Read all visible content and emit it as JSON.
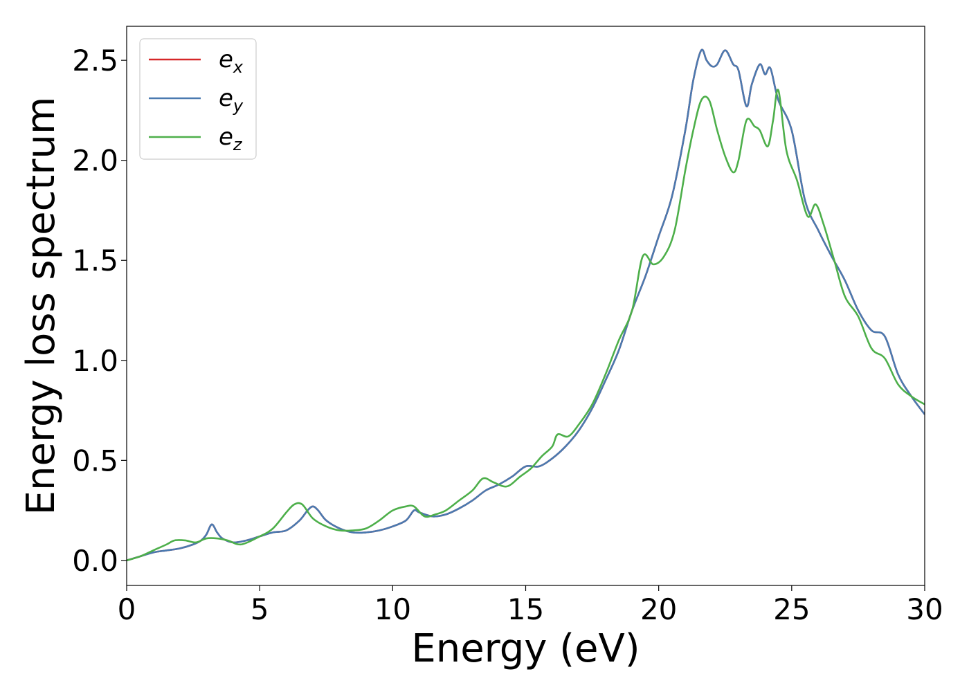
{
  "chart_data": {
    "type": "line",
    "title": "",
    "xlabel": "Energy (eV)",
    "ylabel": "Energy loss spectrum",
    "xlim": [
      0,
      30
    ],
    "ylim": [
      -0.125,
      2.67
    ],
    "xticks": [
      0,
      5,
      10,
      15,
      20,
      25,
      30
    ],
    "xtick_labels": [
      "0",
      "5",
      "10",
      "15",
      "20",
      "25",
      "30"
    ],
    "yticks": [
      0.0,
      0.5,
      1.0,
      1.5,
      2.0,
      2.5
    ],
    "ytick_labels": [
      "0.0",
      "0.5",
      "1.0",
      "1.5",
      "2.0",
      "2.5"
    ],
    "grid": false,
    "legend_position": "top-left",
    "series": [
      {
        "name": "e",
        "subscript": "x",
        "color": "#d62728",
        "x": [
          0,
          0.5,
          1,
          1.5,
          2,
          2.5,
          2.8,
          3.0,
          3.2,
          3.4,
          3.6,
          4.0,
          4.5,
          5,
          5.5,
          6,
          6.5,
          6.8,
          7.0,
          7.2,
          7.5,
          8,
          8.5,
          9,
          9.5,
          10,
          10.5,
          10.8,
          11,
          11.5,
          12,
          12.5,
          13,
          13.5,
          14,
          14.5,
          15,
          15.5,
          16,
          16.5,
          17,
          17.5,
          18,
          18.5,
          19,
          19.5,
          20,
          20.5,
          21,
          21.3,
          21.6,
          21.8,
          22.0,
          22.2,
          22.5,
          22.8,
          23.0,
          23.3,
          23.5,
          23.8,
          24.0,
          24.2,
          24.5,
          25,
          25.5,
          26,
          26.5,
          27,
          27.5,
          28,
          28.5,
          29,
          29.5,
          30
        ],
        "y": [
          0,
          0.02,
          0.04,
          0.05,
          0.06,
          0.08,
          0.1,
          0.13,
          0.18,
          0.14,
          0.11,
          0.09,
          0.1,
          0.12,
          0.14,
          0.15,
          0.2,
          0.25,
          0.27,
          0.25,
          0.2,
          0.16,
          0.14,
          0.14,
          0.15,
          0.17,
          0.2,
          0.25,
          0.24,
          0.22,
          0.23,
          0.26,
          0.3,
          0.35,
          0.38,
          0.42,
          0.47,
          0.47,
          0.51,
          0.57,
          0.65,
          0.76,
          0.9,
          1.05,
          1.25,
          1.42,
          1.62,
          1.82,
          2.15,
          2.4,
          2.55,
          2.5,
          2.47,
          2.48,
          2.55,
          2.48,
          2.45,
          2.27,
          2.38,
          2.48,
          2.43,
          2.46,
          2.3,
          2.15,
          1.8,
          1.65,
          1.52,
          1.4,
          1.25,
          1.15,
          1.12,
          0.93,
          0.82,
          0.73
        ]
      },
      {
        "name": "e",
        "subscript": "y",
        "color": "#4a7ab0",
        "x": [
          0,
          0.5,
          1,
          1.5,
          2,
          2.5,
          2.8,
          3.0,
          3.2,
          3.4,
          3.6,
          4.0,
          4.5,
          5,
          5.5,
          6,
          6.5,
          6.8,
          7.0,
          7.2,
          7.5,
          8,
          8.5,
          9,
          9.5,
          10,
          10.5,
          10.8,
          11,
          11.5,
          12,
          12.5,
          13,
          13.5,
          14,
          14.5,
          15,
          15.5,
          16,
          16.5,
          17,
          17.5,
          18,
          18.5,
          19,
          19.5,
          20,
          20.5,
          21,
          21.3,
          21.6,
          21.8,
          22.0,
          22.2,
          22.5,
          22.8,
          23.0,
          23.3,
          23.5,
          23.8,
          24.0,
          24.2,
          24.5,
          25,
          25.5,
          26,
          26.5,
          27,
          27.5,
          28,
          28.5,
          29,
          29.5,
          30
        ],
        "y": [
          0,
          0.02,
          0.04,
          0.05,
          0.06,
          0.08,
          0.1,
          0.13,
          0.18,
          0.14,
          0.11,
          0.09,
          0.1,
          0.12,
          0.14,
          0.15,
          0.2,
          0.25,
          0.27,
          0.25,
          0.2,
          0.16,
          0.14,
          0.14,
          0.15,
          0.17,
          0.2,
          0.25,
          0.24,
          0.22,
          0.23,
          0.26,
          0.3,
          0.35,
          0.38,
          0.42,
          0.47,
          0.47,
          0.51,
          0.57,
          0.65,
          0.76,
          0.9,
          1.05,
          1.25,
          1.42,
          1.62,
          1.82,
          2.15,
          2.4,
          2.55,
          2.5,
          2.47,
          2.48,
          2.55,
          2.48,
          2.45,
          2.27,
          2.38,
          2.48,
          2.43,
          2.46,
          2.3,
          2.15,
          1.8,
          1.65,
          1.52,
          1.4,
          1.25,
          1.15,
          1.12,
          0.93,
          0.82,
          0.73
        ]
      },
      {
        "name": "e",
        "subscript": "z",
        "color": "#4daf4a",
        "x": [
          0,
          0.5,
          1,
          1.5,
          1.8,
          2.2,
          2.6,
          3.0,
          3.4,
          3.8,
          4.3,
          5,
          5.5,
          6,
          6.3,
          6.6,
          7.0,
          7.5,
          8,
          8.5,
          9,
          9.5,
          10,
          10.5,
          10.8,
          11.2,
          11.6,
          12,
          12.5,
          13,
          13.4,
          13.8,
          14.3,
          14.8,
          15.2,
          15.6,
          16,
          16.2,
          16.6,
          17,
          17.5,
          18,
          18.5,
          19,
          19.4,
          19.8,
          20.2,
          20.6,
          21.0,
          21.3,
          21.6,
          21.9,
          22.2,
          22.5,
          22.8,
          23.0,
          23.3,
          23.6,
          23.8,
          24.1,
          24.3,
          24.5,
          24.8,
          25.2,
          25.6,
          25.9,
          26.2,
          26.6,
          27,
          27.5,
          28,
          28.5,
          29,
          29.5,
          30
        ],
        "y": [
          0,
          0.02,
          0.05,
          0.08,
          0.1,
          0.1,
          0.09,
          0.11,
          0.11,
          0.1,
          0.08,
          0.12,
          0.16,
          0.24,
          0.28,
          0.28,
          0.21,
          0.17,
          0.15,
          0.15,
          0.16,
          0.2,
          0.25,
          0.27,
          0.27,
          0.22,
          0.23,
          0.25,
          0.3,
          0.35,
          0.41,
          0.39,
          0.37,
          0.42,
          0.46,
          0.52,
          0.57,
          0.63,
          0.62,
          0.68,
          0.78,
          0.93,
          1.1,
          1.25,
          1.52,
          1.48,
          1.52,
          1.65,
          1.95,
          2.15,
          2.3,
          2.3,
          2.15,
          2.02,
          1.94,
          2.0,
          2.2,
          2.17,
          2.15,
          2.07,
          2.2,
          2.35,
          2.05,
          1.9,
          1.72,
          1.78,
          1.68,
          1.5,
          1.32,
          1.22,
          1.06,
          1.01,
          0.88,
          0.82,
          0.78
        ]
      }
    ]
  }
}
